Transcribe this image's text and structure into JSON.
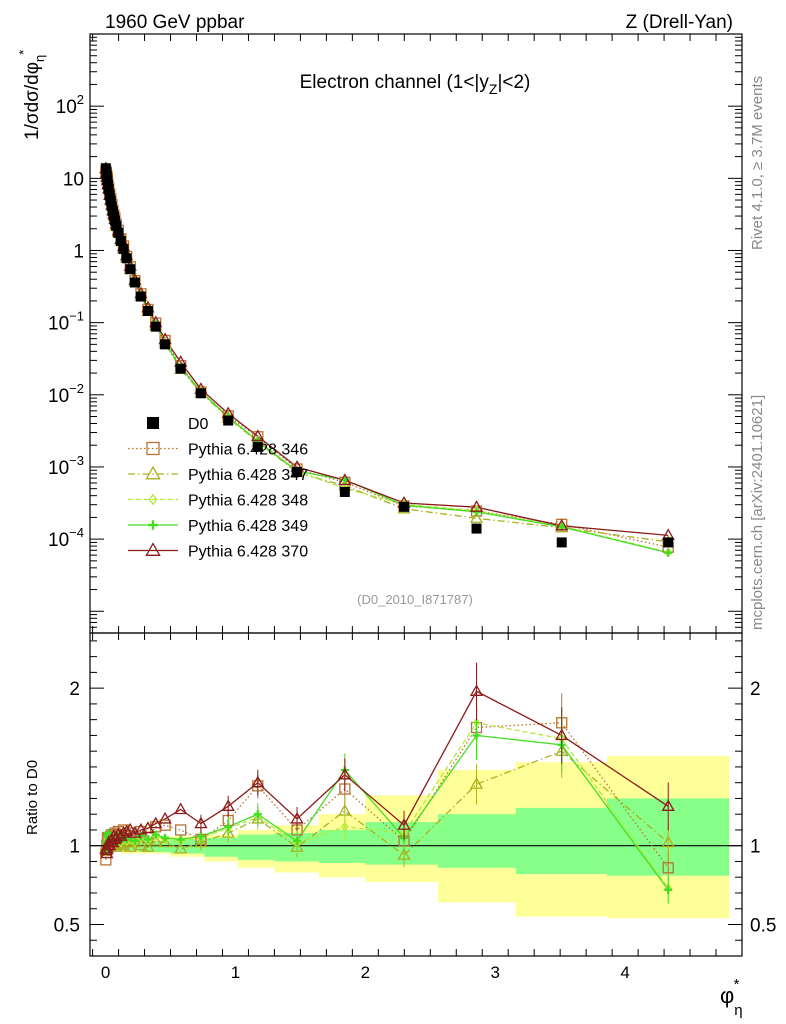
{
  "header": {
    "left": "1960 GeV ppbar",
    "right": "Z (Drell-Yan)",
    "side_rivet": "Rivet 4.1.0, ≥ 3.7M events",
    "side_mcplots": "mcplots.cern.ch [arXiv:2401.10621]"
  },
  "colors": {
    "data": "#000000",
    "s346": "#b87333",
    "s347": "#a8b020",
    "s348": "#b4e83a",
    "s349": "#44dd22",
    "s370": "#8b1a1a",
    "band_outer": "#ffff99",
    "band_inner": "#88ff88"
  },
  "chart_data": {
    "type": "line",
    "title": "Electron channel (1<|y",
    "title_sub": "Z",
    "title_end": "|<2)",
    "analysis_id": "(D0_2010_I871787)",
    "ylabel_main": "1/σdσ/dφ",
    "ylabel_main_sub": "η",
    "ylabel_main_sup": "*",
    "ylabel_ratio": "Ratio to D0",
    "xlabel": "φ",
    "xlabel_sub": "η",
    "xlabel_sup": "*",
    "xlim": [
      -0.12,
      4.9
    ],
    "ylim_main": [
      5e-06,
      1000
    ],
    "ylim_ratio": [
      0.3,
      2.35
    ],
    "x_ticks": [
      0,
      1,
      2,
      3,
      4
    ],
    "x_tick_labels": [
      "0",
      "1",
      "2",
      "3",
      "4"
    ],
    "y_ticks_main": [
      0.0001,
      0.001,
      0.01,
      0.1,
      1,
      10,
      100
    ],
    "y_tick_labels_main": [
      {
        "base": "10",
        "exp": "−4"
      },
      {
        "base": "10",
        "exp": "−3"
      },
      {
        "base": "10",
        "exp": "−2"
      },
      {
        "base": "10",
        "exp": "−1"
      },
      {
        "base": "1",
        "exp": ""
      },
      {
        "base": "10",
        "exp": ""
      },
      {
        "base": "10",
        "exp": "2"
      }
    ],
    "y_ticks_ratio": [
      0.5,
      1,
      2
    ],
    "y_tick_labels_ratio": [
      "0.5",
      "1",
      "2"
    ],
    "x": [
      0.002,
      0.006,
      0.01,
      0.014,
      0.018,
      0.024,
      0.032,
      0.04,
      0.048,
      0.056,
      0.064,
      0.072,
      0.082,
      0.098,
      0.118,
      0.138,
      0.162,
      0.19,
      0.226,
      0.272,
      0.326,
      0.386,
      0.458,
      0.578,
      0.734,
      0.944,
      1.172,
      1.474,
      1.842,
      2.298,
      2.856,
      3.512,
      4.332
    ],
    "data_values": [
      13.8,
      12.2,
      10.8,
      9.5,
      8.2,
      7.0,
      5.8,
      4.9,
      4.1,
      3.5,
      3.0,
      2.6,
      2.2,
      1.75,
      1.35,
      1.05,
      0.78,
      0.55,
      0.36,
      0.23,
      0.145,
      0.088,
      0.05,
      0.023,
      0.0105,
      0.0044,
      0.0019,
      0.00085,
      0.00045,
      0.00028,
      0.00014,
      9e-05,
      9e-05
    ],
    "data_band_outer": [
      [
        0,
        0.12,
        0.96,
        1.03
      ],
      [
        0.12,
        0.25,
        0.95,
        1.04
      ],
      [
        0.25,
        0.5,
        0.95,
        1.05
      ],
      [
        0.5,
        0.76,
        0.93,
        1.06
      ],
      [
        0.76,
        1.02,
        0.9,
        1.07
      ],
      [
        1.02,
        1.3,
        0.86,
        1.1
      ],
      [
        1.3,
        1.64,
        0.83,
        1.13
      ],
      [
        1.64,
        2.0,
        0.8,
        1.2
      ],
      [
        2.0,
        2.56,
        0.77,
        1.32
      ],
      [
        2.56,
        3.16,
        0.64,
        1.48
      ],
      [
        3.16,
        3.86,
        0.55,
        1.53
      ],
      [
        3.86,
        4.8,
        0.54,
        1.57
      ]
    ],
    "data_band_inner": [
      [
        0,
        0.12,
        0.97,
        1.02
      ],
      [
        0.12,
        0.25,
        0.97,
        1.03
      ],
      [
        0.25,
        0.5,
        0.96,
        1.03
      ],
      [
        0.5,
        0.76,
        0.95,
        1.04
      ],
      [
        0.76,
        1.02,
        0.93,
        1.05
      ],
      [
        1.02,
        1.3,
        0.91,
        1.07
      ],
      [
        1.3,
        1.64,
        0.9,
        1.08
      ],
      [
        1.64,
        2.0,
        0.89,
        1.1
      ],
      [
        2.0,
        2.56,
        0.88,
        1.15
      ],
      [
        2.56,
        3.16,
        0.86,
        1.2
      ],
      [
        3.16,
        3.86,
        0.82,
        1.24
      ],
      [
        3.86,
        4.8,
        0.81,
        1.3
      ]
    ],
    "series": [
      {
        "name": "D0",
        "key": "data"
      },
      {
        "name": "Pythia 6.428 346",
        "key": "s346",
        "style": "dotted",
        "marker": "square-open",
        "ratio": [
          0.91,
          0.97,
          1.0,
          1.05,
          1.02,
          1.05,
          1.05,
          1.06,
          1.07,
          1.03,
          1.04,
          1.08,
          1.05,
          1.09,
          1.07,
          1.1,
          1.06,
          1.08,
          1.06,
          1.09,
          1.05,
          1.12,
          1.13,
          1.1,
          1.04,
          1.16,
          1.38,
          1.1,
          1.36,
          1.03,
          1.75,
          1.78,
          0.86
        ]
      },
      {
        "name": "Pythia 6.428 347",
        "key": "s347",
        "style": "dashdot",
        "marker": "triangle-open",
        "ratio": [
          1.0,
          0.97,
          0.99,
          1.02,
          1.0,
          1.03,
          1.01,
          1.0,
          1.02,
          1.03,
          1.01,
          1.04,
          0.99,
          1.02,
          1.01,
          1.0,
          1.02,
          0.99,
          1.02,
          1.0,
          0.99,
          1.03,
          1.02,
          0.98,
          1.02,
          1.08,
          1.17,
          0.99,
          1.22,
          0.94,
          1.39,
          1.6,
          1.02
        ]
      },
      {
        "name": "Pythia 6.428 348",
        "key": "s348",
        "style": "dashed",
        "marker": "diamond-open",
        "ratio": [
          0.96,
          1.03,
          1.05,
          1.02,
          1.06,
          1.03,
          1.02,
          1.04,
          1.03,
          1.05,
          1.02,
          1.04,
          1.03,
          1.05,
          1.02,
          1.04,
          1.03,
          1.04,
          1.02,
          1.05,
          1.03,
          1.06,
          1.04,
          1.03,
          1.05,
          1.11,
          1.18,
          1.02,
          1.12,
          1.08,
          1.78,
          1.68,
          0.73
        ]
      },
      {
        "name": "Pythia 6.428 349",
        "key": "s349",
        "style": "solid",
        "marker": "cross",
        "ratio": [
          0.97,
          1.02,
          1.06,
          1.03,
          1.08,
          1.05,
          1.03,
          1.05,
          1.04,
          1.06,
          1.03,
          1.05,
          1.04,
          1.06,
          1.03,
          1.05,
          1.04,
          1.05,
          1.03,
          1.06,
          1.04,
          1.07,
          1.05,
          1.04,
          1.06,
          1.12,
          1.2,
          1.03,
          1.48,
          1.05,
          1.7,
          1.64,
          0.72
        ]
      },
      {
        "name": "Pythia 6.428 370",
        "key": "s370",
        "style": "solid",
        "marker": "triangle-open",
        "ratio": [
          0.98,
          0.97,
          0.95,
          0.98,
          1.0,
          1.02,
          1.0,
          1.03,
          1.04,
          1.02,
          1.06,
          1.04,
          1.05,
          1.07,
          1.06,
          1.08,
          1.09,
          1.1,
          1.08,
          1.1,
          1.11,
          1.14,
          1.17,
          1.23,
          1.14,
          1.25,
          1.4,
          1.17,
          1.45,
          1.13,
          1.98,
          1.7,
          1.25
        ]
      }
    ]
  }
}
